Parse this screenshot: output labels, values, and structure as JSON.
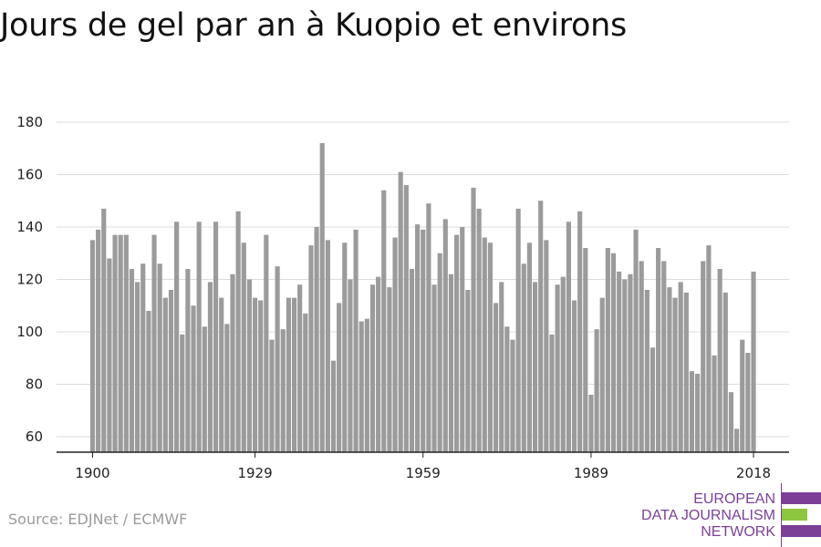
{
  "title": "Jours de gel par an à Kuopio et environs",
  "source": "Source: EDJNet / ECMWF",
  "logo": {
    "lines": [
      "EUROPEAN",
      "DATA JOURNALISM",
      "NETWORK"
    ],
    "colors": [
      "#7b3f98",
      "#8dc63f",
      "#7b3f98"
    ]
  },
  "colors": {
    "bar": "#9b9b9b",
    "grid": "#dcdcdc",
    "axis": "#222222"
  },
  "chart_data": {
    "type": "bar",
    "title": "Jours de gel par an à Kuopio et environs",
    "xlabel": "",
    "ylabel": "",
    "x_start": 1900,
    "x_ticks": [
      1900,
      1929,
      1959,
      1989,
      2018
    ],
    "y_ticks": [
      60,
      80,
      100,
      120,
      140,
      160,
      180
    ],
    "ylim": [
      54,
      182
    ],
    "grid": true,
    "values": [
      135,
      139,
      147,
      128,
      137,
      137,
      137,
      124,
      119,
      126,
      108,
      137,
      126,
      113,
      116,
      142,
      99,
      124,
      110,
      142,
      102,
      119,
      142,
      113,
      103,
      122,
      146,
      134,
      120,
      113,
      112,
      137,
      97,
      125,
      101,
      113,
      113,
      118,
      107,
      133,
      140,
      172,
      135,
      89,
      111,
      134,
      120,
      139,
      104,
      105,
      118,
      121,
      154,
      117,
      136,
      161,
      156,
      124,
      141,
      139,
      149,
      118,
      130,
      143,
      122,
      137,
      140,
      116,
      155,
      147,
      136,
      134,
      111,
      119,
      102,
      97,
      147,
      126,
      134,
      119,
      150,
      135,
      99,
      118,
      121,
      142,
      112,
      146,
      132,
      76,
      101,
      113,
      132,
      130,
      123,
      120,
      122,
      139,
      127,
      116,
      94,
      132,
      127,
      117,
      113,
      119,
      115,
      85,
      84,
      127,
      133,
      91,
      124,
      115,
      77,
      63,
      97,
      92,
      123
    ]
  }
}
